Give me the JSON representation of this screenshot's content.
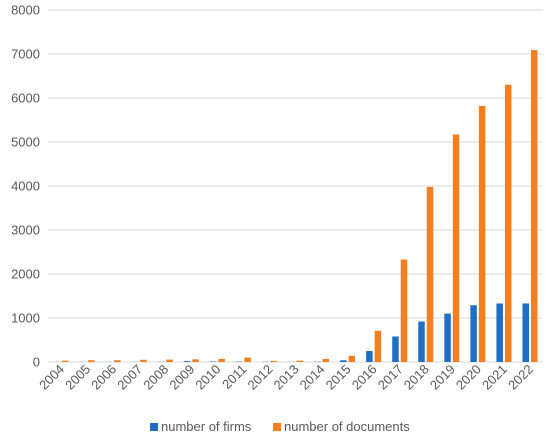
{
  "chart_data": {
    "type": "bar",
    "title": "",
    "xlabel": "",
    "ylabel": "",
    "ylim": [
      0,
      8000
    ],
    "yticks": [
      0,
      1000,
      2000,
      3000,
      4000,
      5000,
      6000,
      7000,
      8000
    ],
    "grid": true,
    "legend_position": "bottom",
    "categories": [
      "2004",
      "2005",
      "2006",
      "2007",
      "2008",
      "2009",
      "2010",
      "2011",
      "2012",
      "2013",
      "2014",
      "2015",
      "2016",
      "2017",
      "2018",
      "2019",
      "2020",
      "2021",
      "2022"
    ],
    "series": [
      {
        "name": "number of firms",
        "color": "#1f6fc5",
        "values": [
          2,
          3,
          2,
          3,
          4,
          20,
          10,
          8,
          4,
          3,
          8,
          40,
          250,
          580,
          920,
          1100,
          1290,
          1330,
          1330
        ]
      },
      {
        "name": "number of documents",
        "color": "#f47f20",
        "values": [
          30,
          40,
          40,
          50,
          55,
          60,
          70,
          100,
          25,
          30,
          70,
          140,
          710,
          2330,
          3980,
          5170,
          5820,
          6300,
          7090
        ]
      }
    ]
  }
}
